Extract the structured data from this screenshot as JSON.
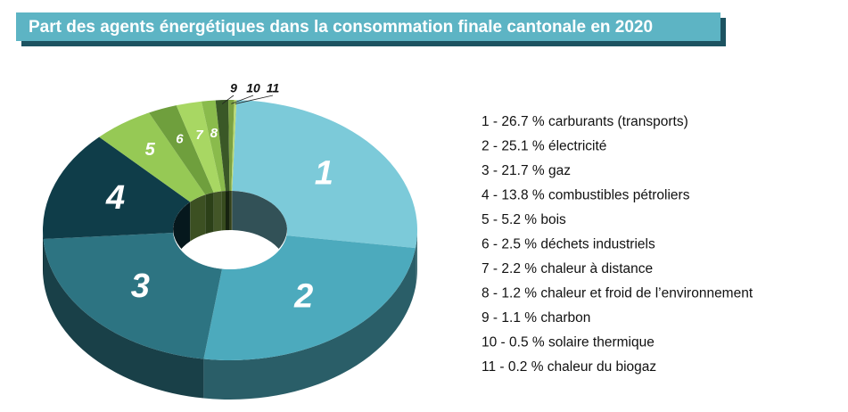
{
  "chart_data": {
    "type": "donut3d",
    "title": "Part des agents énergétiques dans la consommation finale cantonale en 2020",
    "categories": [
      "1",
      "2",
      "3",
      "4",
      "5",
      "6",
      "7",
      "8",
      "9",
      "10",
      "11"
    ],
    "values": [
      26.7,
      25.1,
      21.7,
      13.8,
      5.2,
      2.5,
      2.2,
      1.2,
      1.1,
      0.5,
      0.2
    ],
    "legend": [
      "1 - 26.7 % carburants (transports)",
      "2 - 25.1 % électricité",
      "3 - 21.7 % gaz",
      "4 - 13.8 % combustibles pétroliers",
      "5 - 5.2 % bois",
      "6 - 2.5 % déchets industriels",
      "7 - 2.2 % chaleur à distance",
      "8 - 1.2 % chaleur et froid de l’environnement",
      "9 - 1.1 % charbon",
      "10 - 0.5 % solaire thermique",
      "11 - 0.2 % chaleur du biogaz"
    ],
    "colors": [
      "#7ccad9",
      "#4caabd",
      "#2d7482",
      "#0f3d49",
      "#96c955",
      "#6f9f3d",
      "#a8d763",
      "#8abb4c",
      "#3a5827",
      "#7ba141",
      "#b9d973"
    ]
  }
}
